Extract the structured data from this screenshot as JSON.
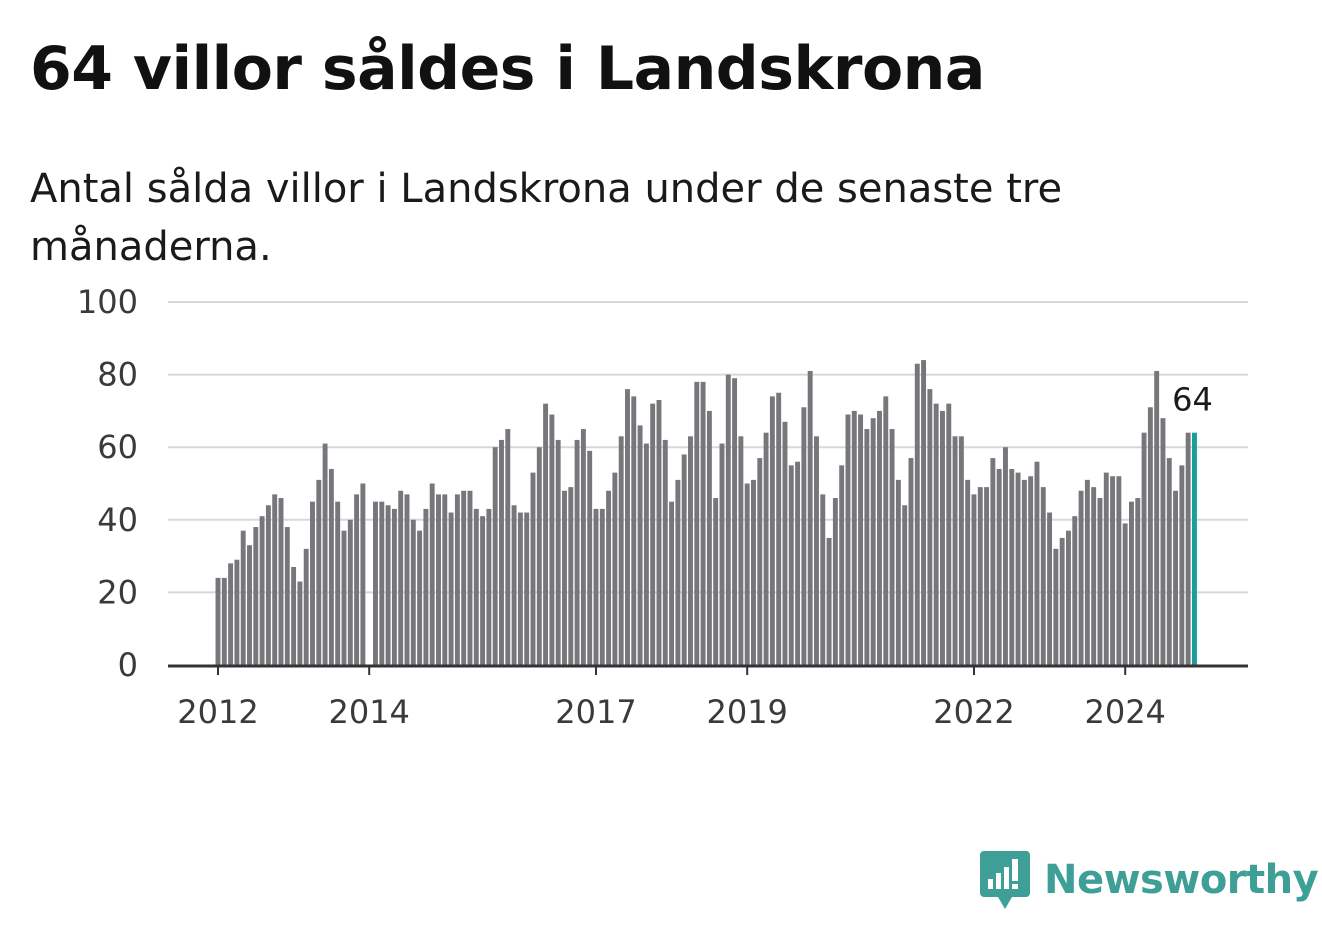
{
  "title": "64 villor såldes i Landskrona",
  "subtitle": "Antal sålda villor i Landskrona under de senaste tre månaderna.",
  "logo": {
    "text": "Newsworthy",
    "icon": "newsworthy-chart-icon"
  },
  "colors": {
    "bar": "#77767b",
    "highlight": "#1a9e99",
    "grid": "#d8d8d8",
    "axis": "#333333",
    "brand": "#3e9f96"
  },
  "chart_data": {
    "type": "bar",
    "x_start": 2012.0,
    "x_step": 0.08333,
    "values": [
      24,
      24,
      28,
      29,
      37,
      33,
      38,
      41,
      44,
      47,
      46,
      38,
      27,
      23,
      32,
      45,
      51,
      61,
      54,
      45,
      37,
      40,
      47,
      50,
      0,
      45,
      45,
      44,
      43,
      48,
      47,
      40,
      37,
      43,
      50,
      47,
      47,
      42,
      47,
      48,
      48,
      43,
      41,
      43,
      60,
      62,
      65,
      44,
      42,
      42,
      53,
      60,
      72,
      69,
      62,
      48,
      49,
      62,
      65,
      59,
      43,
      43,
      48,
      53,
      63,
      76,
      74,
      66,
      61,
      72,
      73,
      62,
      45,
      51,
      58,
      63,
      78,
      78,
      70,
      46,
      61,
      80,
      79,
      63,
      50,
      51,
      57,
      64,
      74,
      75,
      67,
      55,
      56,
      71,
      81,
      63,
      47,
      35,
      46,
      55,
      69,
      70,
      69,
      65,
      68,
      70,
      74,
      65,
      51,
      44,
      57,
      83,
      84,
      76,
      72,
      70,
      72,
      63,
      63,
      51,
      47,
      49,
      49,
      57,
      54,
      60,
      54,
      53,
      51,
      52,
      56,
      49,
      42,
      32,
      35,
      37,
      41,
      48,
      51,
      49,
      46,
      53,
      52,
      52,
      39,
      45,
      46,
      64,
      71,
      81,
      68,
      57,
      48,
      55,
      64,
      64
    ],
    "highlight_value": 64,
    "highlight_label": "64",
    "ylim": [
      0,
      100
    ],
    "yticks": [
      0,
      20,
      40,
      60,
      80,
      100
    ],
    "xticks": [
      2012,
      2014,
      2017,
      2019,
      2022,
      2024
    ],
    "xlim": [
      2011.67,
      2025.3
    ],
    "grid": true
  }
}
